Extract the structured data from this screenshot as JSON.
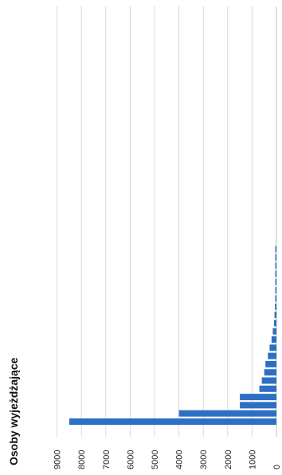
{
  "chart_data": {
    "type": "bar",
    "orientation": "horizontal-bars-rotated-page",
    "title": "Osoby wyjeżdżające",
    "ylim": [
      0,
      9000
    ],
    "ticks": [
      0,
      1000,
      2000,
      3000,
      4000,
      5000,
      6000,
      7000,
      8000,
      9000
    ],
    "tick_labels": [
      "0",
      "1000",
      "2000",
      "3000",
      "4000",
      "5000",
      "6000",
      "7000",
      "8000",
      "9000"
    ],
    "grid": true,
    "bar_color": "#2e6fc4",
    "values": [
      8500,
      4000,
      1500,
      1500,
      700,
      600,
      500,
      450,
      350,
      280,
      200,
      150,
      100,
      80,
      60,
      50,
      40,
      30,
      25,
      20,
      15,
      10
    ]
  }
}
